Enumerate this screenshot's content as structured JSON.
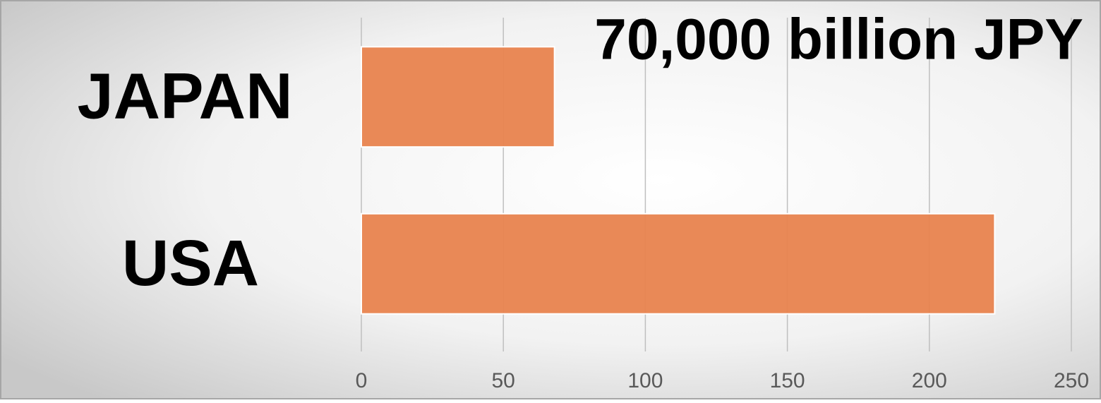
{
  "chart_data": {
    "type": "bar",
    "orientation": "horizontal",
    "categories": [
      "JAPAN",
      "USA"
    ],
    "values": [
      68,
      223
    ],
    "color": "#e8834e",
    "annotation": "70,000 billion JPY",
    "xlim": [
      0,
      250
    ],
    "xticks": [
      0,
      50,
      100,
      150,
      200,
      250
    ],
    "grid": true
  }
}
